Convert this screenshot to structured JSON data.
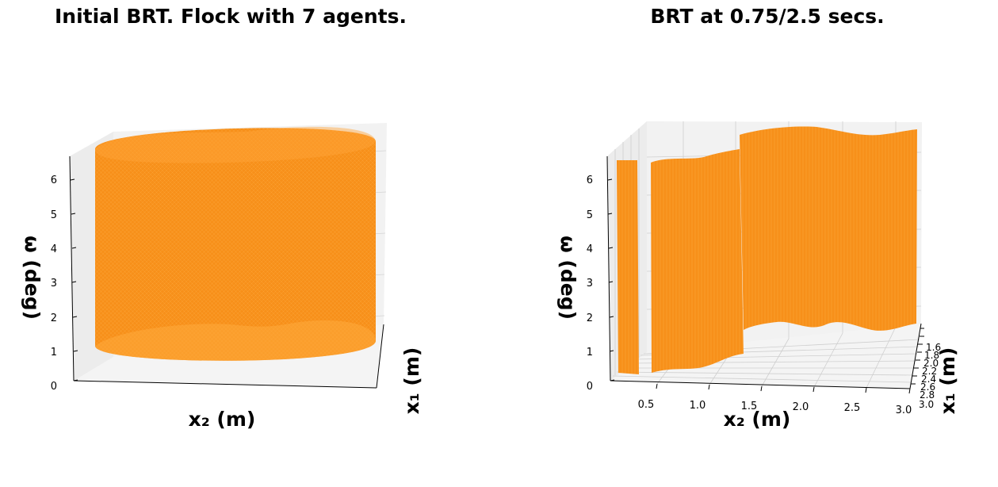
{
  "chart_data": [
    {
      "type": "surface3d",
      "title": "Initial BRT. Flock with 7 agents.",
      "xlabel": "x₂ (m)",
      "ylabel": "x₁ (m)",
      "zlabel": "ω (deg)",
      "z_ticks": [
        "0",
        "1",
        "2",
        "3",
        "4",
        "5",
        "6"
      ],
      "x_ticks": [],
      "y_ticks": [],
      "zlim": [
        0,
        6.5
      ],
      "surface_color": "#f7901a",
      "shape": "cylinder"
    },
    {
      "type": "surface3d",
      "title": "BRT at 0.75/2.5 secs.",
      "xlabel": "x₂ (m)",
      "ylabel": "x₁ (m)",
      "zlabel": "ω (deg)",
      "z_ticks": [
        "0",
        "1",
        "2",
        "3",
        "4",
        "5",
        "6"
      ],
      "x_ticks": [
        "0.5",
        "1.0",
        "1.5",
        "2.0",
        "2.5",
        "3.0"
      ],
      "y_ticks": [
        "1.6",
        "1.8",
        "2.0",
        "2.2",
        "2.4",
        "2.6",
        "2.8",
        "3.0"
      ],
      "zlim": [
        0,
        6.5
      ],
      "xlim": [
        0.1,
        3.0
      ],
      "surface_color": "#f7901a",
      "shape": "fragmented-wall"
    }
  ]
}
